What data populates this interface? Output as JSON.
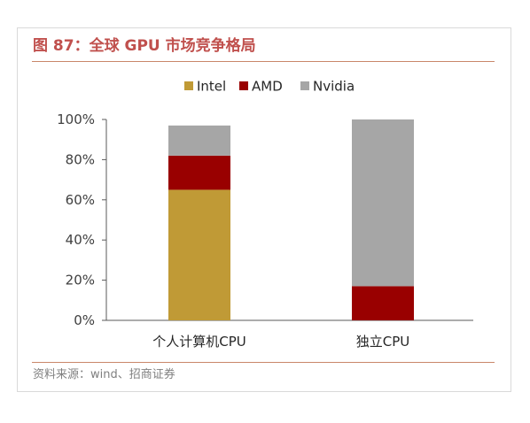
{
  "figure": {
    "title": "图 87：全球 GPU 市场竞争格局",
    "source": "资料来源：wind、招商证券"
  },
  "colors": {
    "title": "#c0504d",
    "rule": "#c9876a",
    "source": "#7f7f7f",
    "axis": "#595959",
    "tick_label": "#404040"
  },
  "chart_data": {
    "type": "bar",
    "stacked": true,
    "categories": [
      "个人计算机CPU",
      "独立CPU"
    ],
    "series": [
      {
        "name": "Intel",
        "color": "#c09a36",
        "values": [
          65,
          0
        ]
      },
      {
        "name": "AMD",
        "color": "#990000",
        "values": [
          17,
          17
        ]
      },
      {
        "name": "Nvidia",
        "color": "#a6a6a6",
        "values": [
          15,
          83
        ]
      }
    ],
    "ylim": [
      0,
      100
    ],
    "yticks": [
      0,
      20,
      40,
      60,
      80,
      100
    ],
    "ytick_format": "percent",
    "grid": false,
    "legend": "top"
  }
}
